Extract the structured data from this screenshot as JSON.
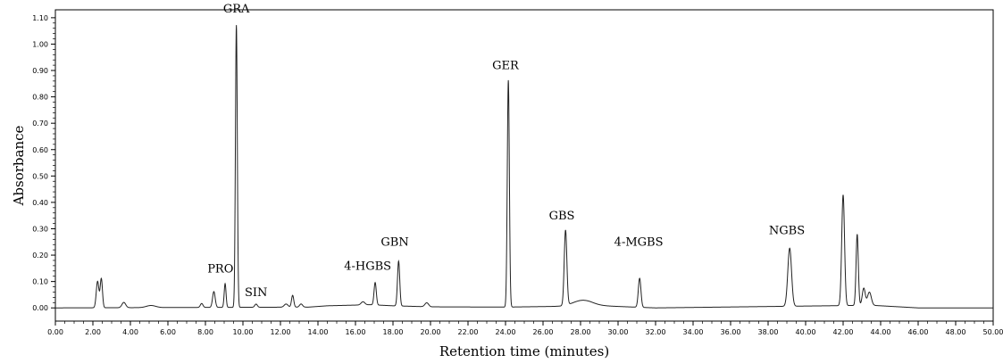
{
  "chart_data": {
    "type": "line",
    "xlabel": "Retention time (minutes)",
    "ylabel": "Absorbance",
    "xlim": [
      0,
      50
    ],
    "ylim": [
      -0.05,
      1.13
    ],
    "grid": false,
    "x_ticks": [
      "0.00",
      "2.00",
      "4.00",
      "6.00",
      "8.00",
      "10.00",
      "12.00",
      "14.00",
      "16.00",
      "18.00",
      "20.00",
      "22.00",
      "24.00",
      "26.00",
      "28.00",
      "30.00",
      "32.00",
      "34.00",
      "36.00",
      "38.00",
      "40.00",
      "42.00",
      "44.00",
      "46.00",
      "48.00",
      "50.00"
    ],
    "y_ticks": [
      "0.00",
      "0.10",
      "0.20",
      "0.30",
      "0.40",
      "0.50",
      "0.60",
      "0.70",
      "0.80",
      "0.90",
      "1.00",
      "1.10"
    ],
    "peaks": [
      {
        "x": 2.25,
        "y": 0.1,
        "w": 0.07
      },
      {
        "x": 2.45,
        "y": 0.11,
        "w": 0.06
      },
      {
        "x": 3.65,
        "y": 0.02,
        "w": 0.1
      },
      {
        "x": 5.1,
        "y": 0.008,
        "w": 0.25
      },
      {
        "x": 7.8,
        "y": 0.015,
        "w": 0.07
      },
      {
        "x": 8.45,
        "y": 0.06,
        "w": 0.07
      },
      {
        "x": 9.05,
        "y": 0.09,
        "w": 0.05
      },
      {
        "x": 9.65,
        "y": 1.07,
        "w": 0.05
      },
      {
        "x": 10.7,
        "y": 0.012,
        "w": 0.07
      },
      {
        "x": 12.3,
        "y": 0.012,
        "w": 0.1
      },
      {
        "x": 12.65,
        "y": 0.045,
        "w": 0.06
      },
      {
        "x": 13.1,
        "y": 0.012,
        "w": 0.08
      },
      {
        "x": 16.4,
        "y": 0.012,
        "w": 0.1
      },
      {
        "x": 17.05,
        "y": 0.085,
        "w": 0.06
      },
      {
        "x": 18.3,
        "y": 0.17,
        "w": 0.06
      },
      {
        "x": 19.8,
        "y": 0.015,
        "w": 0.1
      },
      {
        "x": 24.15,
        "y": 0.86,
        "w": 0.055
      },
      {
        "x": 27.2,
        "y": 0.285,
        "w": 0.07
      },
      {
        "x": 28.1,
        "y": 0.02,
        "w": 0.5
      },
      {
        "x": 31.15,
        "y": 0.11,
        "w": 0.07
      },
      {
        "x": 39.15,
        "y": 0.22,
        "w": 0.1
      },
      {
        "x": 42.0,
        "y": 0.42,
        "w": 0.075
      },
      {
        "x": 42.75,
        "y": 0.27,
        "w": 0.06
      },
      {
        "x": 43.1,
        "y": 0.065,
        "w": 0.08
      },
      {
        "x": 43.4,
        "y": 0.05,
        "w": 0.1
      }
    ],
    "baseline": [
      {
        "x": 0,
        "y": 0.0
      },
      {
        "x": 13.5,
        "y": 0.003
      },
      {
        "x": 14.5,
        "y": 0.008
      },
      {
        "x": 16.8,
        "y": 0.012
      },
      {
        "x": 18.0,
        "y": 0.008
      },
      {
        "x": 20.0,
        "y": 0.004
      },
      {
        "x": 24.0,
        "y": 0.003
      },
      {
        "x": 27.0,
        "y": 0.006
      },
      {
        "x": 28.5,
        "y": 0.01
      },
      {
        "x": 30.5,
        "y": 0.004
      },
      {
        "x": 32.0,
        "y": 0.0
      },
      {
        "x": 43.5,
        "y": 0.01
      },
      {
        "x": 46.0,
        "y": 0.0
      },
      {
        "x": 50,
        "y": 0.0
      }
    ],
    "annotations": [
      {
        "text": "GRA",
        "x": 9.65,
        "y": 1.12
      },
      {
        "text": "PRO",
        "x": 8.8,
        "y": 0.135
      },
      {
        "text": "SIN",
        "x": 10.7,
        "y": 0.045
      },
      {
        "text": "4-HGBS",
        "x": 16.65,
        "y": 0.145
      },
      {
        "text": "GBN",
        "x": 18.1,
        "y": 0.235
      },
      {
        "text": "GER",
        "x": 24.0,
        "y": 0.905
      },
      {
        "text": "GBS",
        "x": 27.0,
        "y": 0.335
      },
      {
        "text": "4-MGBS",
        "x": 31.1,
        "y": 0.235
      },
      {
        "text": "NGBS",
        "x": 39.0,
        "y": 0.28
      }
    ]
  }
}
